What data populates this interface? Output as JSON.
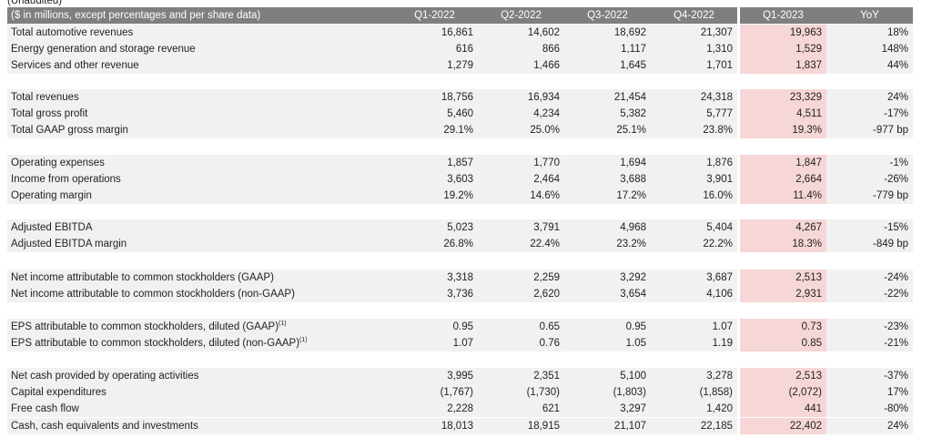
{
  "caption": "(Unaudited)",
  "table": {
    "header": [
      "($ in millions, except percentages and per share data)",
      "Q1-2022",
      "Q2-2022",
      "Q3-2022",
      "Q4-2022",
      "Q1-2023",
      "YoY"
    ],
    "groups": [
      [
        {
          "label": "Total automotive revenues",
          "cells": [
            "16,861",
            "14,602",
            "18,692",
            "21,307",
            "19,963",
            "18%"
          ]
        },
        {
          "label": "Energy generation and storage revenue",
          "cells": [
            "616",
            "866",
            "1,117",
            "1,310",
            "1,529",
            "148%"
          ]
        },
        {
          "label": "Services and other revenue",
          "cells": [
            "1,279",
            "1,466",
            "1,645",
            "1,701",
            "1,837",
            "44%"
          ]
        }
      ],
      [
        {
          "label": "Total revenues",
          "cells": [
            "18,756",
            "16,934",
            "21,454",
            "24,318",
            "23,329",
            "24%"
          ]
        },
        {
          "label": "Total gross profit",
          "cells": [
            "5,460",
            "4,234",
            "5,382",
            "5,777",
            "4,511",
            "-17%"
          ]
        },
        {
          "label": "Total GAAP gross margin",
          "cells": [
            "29.1%",
            "25.0%",
            "25.1%",
            "23.8%",
            "19.3%",
            "-977 bp"
          ]
        }
      ],
      [
        {
          "label": "Operating expenses",
          "cells": [
            "1,857",
            "1,770",
            "1,694",
            "1,876",
            "1,847",
            "-1%"
          ]
        },
        {
          "label": "Income from operations",
          "cells": [
            "3,603",
            "2,464",
            "3,688",
            "3,901",
            "2,664",
            "-26%"
          ]
        },
        {
          "label": "Operating margin",
          "cells": [
            "19.2%",
            "14.6%",
            "17.2%",
            "16.0%",
            "11.4%",
            "-779 bp"
          ]
        }
      ],
      [
        {
          "label": "Adjusted EBITDA",
          "cells": [
            "5,023",
            "3,791",
            "4,968",
            "5,404",
            "4,267",
            "-15%"
          ]
        },
        {
          "label": "Adjusted EBITDA margin",
          "cells": [
            "26.8%",
            "22.4%",
            "23.2%",
            "22.2%",
            "18.3%",
            "-849 bp"
          ]
        }
      ],
      [
        {
          "label": "Net income attributable to common stockholders (GAAP)",
          "cells": [
            "3,318",
            "2,259",
            "3,292",
            "3,687",
            "2,513",
            "-24%"
          ]
        },
        {
          "label": "Net income attributable to common stockholders (non-GAAP)",
          "cells": [
            "3,736",
            "2,620",
            "3,654",
            "4,106",
            "2,931",
            "-22%"
          ]
        }
      ],
      [
        {
          "label": "EPS attributable to common stockholders, diluted (GAAP)",
          "note": "(1)",
          "cells": [
            "0.95",
            "0.65",
            "0.95",
            "1.07",
            "0.73",
            "-23%"
          ]
        },
        {
          "label": "EPS attributable to common stockholders, diluted (non-GAAP)",
          "note": "(1)",
          "cells": [
            "1.07",
            "0.76",
            "1.05",
            "1.19",
            "0.85",
            "-21%"
          ]
        }
      ],
      [
        {
          "label": "Net cash provided by operating activities",
          "cells": [
            "3,995",
            "2,351",
            "5,100",
            "3,278",
            "2,513",
            "-37%"
          ]
        },
        {
          "label": "Capital expenditures",
          "cells": [
            "(1,767)",
            "(1,730)",
            "(1,803)",
            "(1,858)",
            "(2,072)",
            "17%"
          ]
        },
        {
          "label": "Free cash flow",
          "cells": [
            "2,228",
            "621",
            "3,297",
            "1,420",
            "441",
            "-80%"
          ]
        },
        {
          "label": "Cash, cash equivalents and investments",
          "cells": [
            "18,013",
            "18,915",
            "21,107",
            "22,185",
            "22,402",
            "24%"
          ]
        }
      ]
    ]
  }
}
